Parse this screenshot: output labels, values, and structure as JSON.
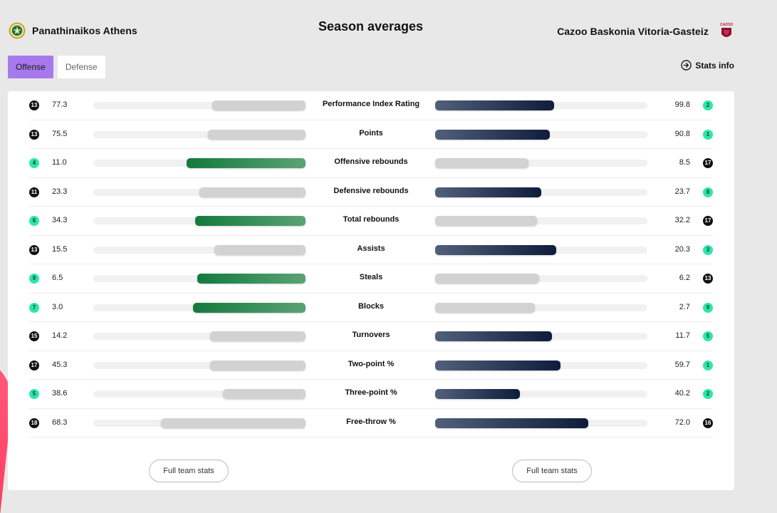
{
  "header": {
    "title": "Season averages",
    "left_team": "Panathinaikos Athens",
    "right_team": "Cazoo Baskonia Vitoria-Gasteiz",
    "right_logo_text": "CAZOO"
  },
  "tabs": [
    {
      "label": "Offense",
      "active": true
    },
    {
      "label": "Defense",
      "active": false
    }
  ],
  "stats_info_label": "Stats info",
  "colors": {
    "active_tab": "#a879ec",
    "rank_top_badge": "#2ee6a8",
    "rank_badge": "#111111",
    "leader_bar_left": "#137a3c",
    "leader_bar_right": "#0f1c3c",
    "other_bar": "#d2d2d2"
  },
  "stats": [
    {
      "label": "Performance Index Rating",
      "left_rank": "13",
      "left_value": "77.3",
      "right_value": "99.8",
      "right_rank": "2",
      "left_pct": 0.44,
      "right_pct": 0.56,
      "leader": "right"
    },
    {
      "label": "Points",
      "left_rank": "13",
      "left_value": "75.5",
      "right_value": "90.8",
      "right_rank": "1",
      "left_pct": 0.46,
      "right_pct": 0.54,
      "leader": "right"
    },
    {
      "label": "Offensive rebounds",
      "left_rank": "4",
      "left_value": "11.0",
      "right_value": "8.5",
      "right_rank": "17",
      "left_pct": 0.56,
      "right_pct": 0.44,
      "leader": "left"
    },
    {
      "label": "Defensive rebounds",
      "left_rank": "11",
      "left_value": "23.3",
      "right_value": "23.7",
      "right_rank": "8",
      "left_pct": 0.5,
      "right_pct": 0.5,
      "leader": "right"
    },
    {
      "label": "Total rebounds",
      "left_rank": "6",
      "left_value": "34.3",
      "right_value": "32.2",
      "right_rank": "17",
      "left_pct": 0.52,
      "right_pct": 0.48,
      "leader": "left"
    },
    {
      "label": "Assists",
      "left_rank": "13",
      "left_value": "15.5",
      "right_value": "20.3",
      "right_rank": "3",
      "left_pct": 0.43,
      "right_pct": 0.57,
      "leader": "right"
    },
    {
      "label": "Steals",
      "left_rank": "9",
      "left_value": "6.5",
      "right_value": "6.2",
      "right_rank": "13",
      "left_pct": 0.51,
      "right_pct": 0.49,
      "leader": "left"
    },
    {
      "label": "Blocks",
      "left_rank": "7",
      "left_value": "3.0",
      "right_value": "2.7",
      "right_rank": "9",
      "left_pct": 0.53,
      "right_pct": 0.47,
      "leader": "left"
    },
    {
      "label": "Turnovers",
      "left_rank": "15",
      "left_value": "14.2",
      "right_value": "11.7",
      "right_rank": "5",
      "left_pct": 0.45,
      "right_pct": 0.55,
      "leader": "right"
    },
    {
      "label": "Two-point %",
      "left_rank": "17",
      "left_value": "45.3",
      "right_value": "59.7",
      "right_rank": "1",
      "left_pct": 0.45,
      "right_pct": 0.59,
      "leader": "right"
    },
    {
      "label": "Three-point %",
      "left_rank": "5",
      "left_value": "38.6",
      "right_value": "40.2",
      "right_rank": "2",
      "left_pct": 0.39,
      "right_pct": 0.4,
      "leader": "right"
    },
    {
      "label": "Free-throw %",
      "left_rank": "18",
      "left_value": "68.3",
      "right_value": "72.0",
      "right_rank": "16",
      "left_pct": 0.68,
      "right_pct": 0.72,
      "leader": "right"
    }
  ],
  "buttons": {
    "full_stats_left": "Full team stats",
    "full_stats_right": "Full team stats"
  }
}
